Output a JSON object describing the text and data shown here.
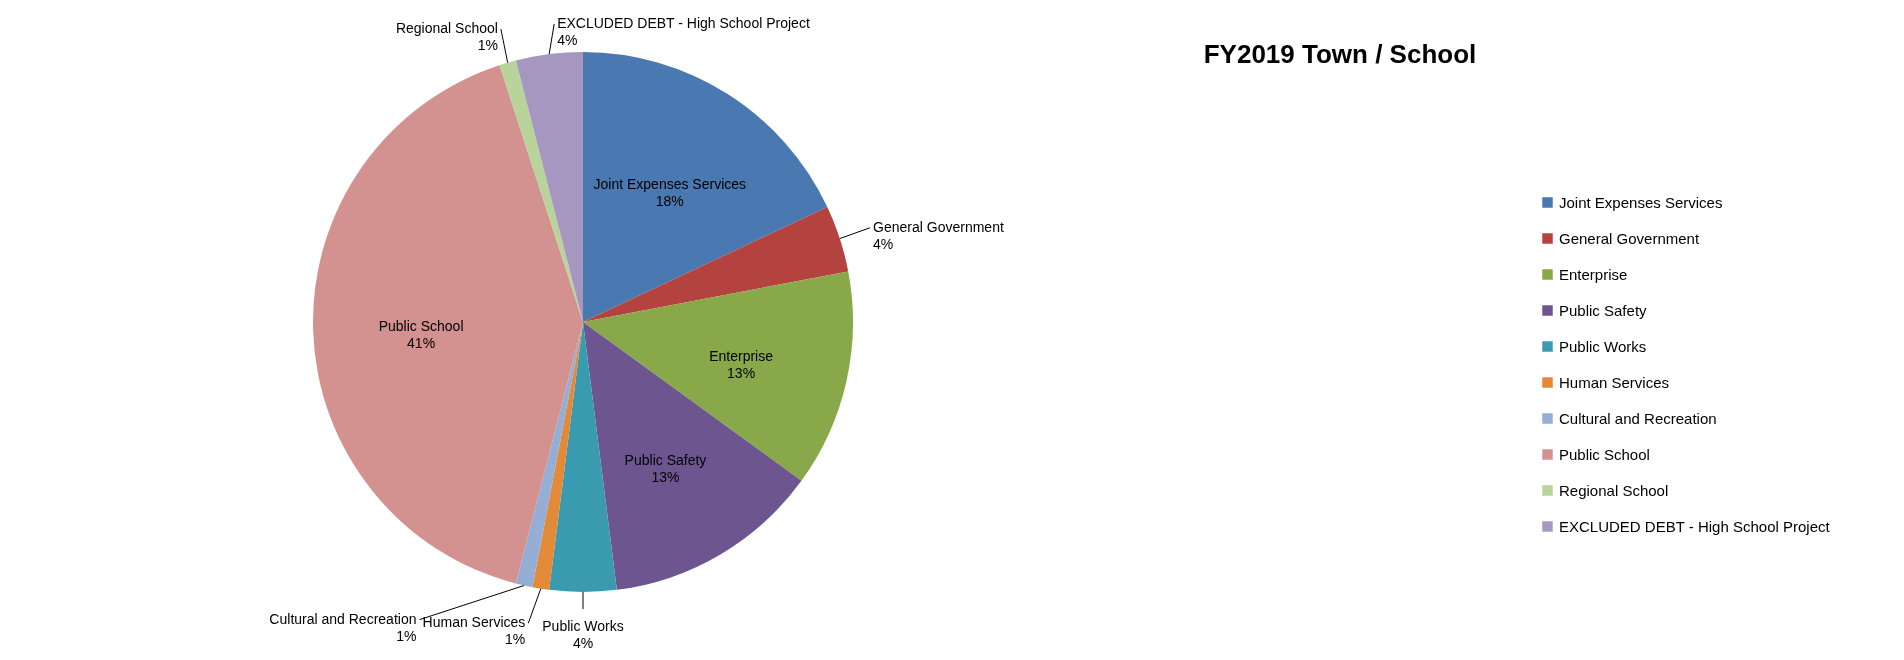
{
  "chart_data": {
    "type": "pie",
    "title": "FY2019 Town / School",
    "categories": [
      "Joint Expenses Services",
      "General Government",
      "Enterprise",
      "Public Safety",
      "Public Works",
      "Human Services",
      "Cultural and Recreation",
      "Public School",
      "Regional School",
      "EXCLUDED DEBT - High School Project"
    ],
    "values": [
      18,
      4,
      13,
      13,
      4,
      1,
      1,
      41,
      1,
      4
    ],
    "value_labels": [
      "18%",
      "4%",
      "13%",
      "13%",
      "4%",
      "1%",
      "1%",
      "41%",
      "1%",
      "4%"
    ],
    "colors": [
      "#4a78b0",
      "#b4433f",
      "#88a84a",
      "#6d5590",
      "#3a9bb0",
      "#e28a38",
      "#94aed6",
      "#d3918f",
      "#b8d49a",
      "#a697c0"
    ],
    "legend": "right"
  }
}
